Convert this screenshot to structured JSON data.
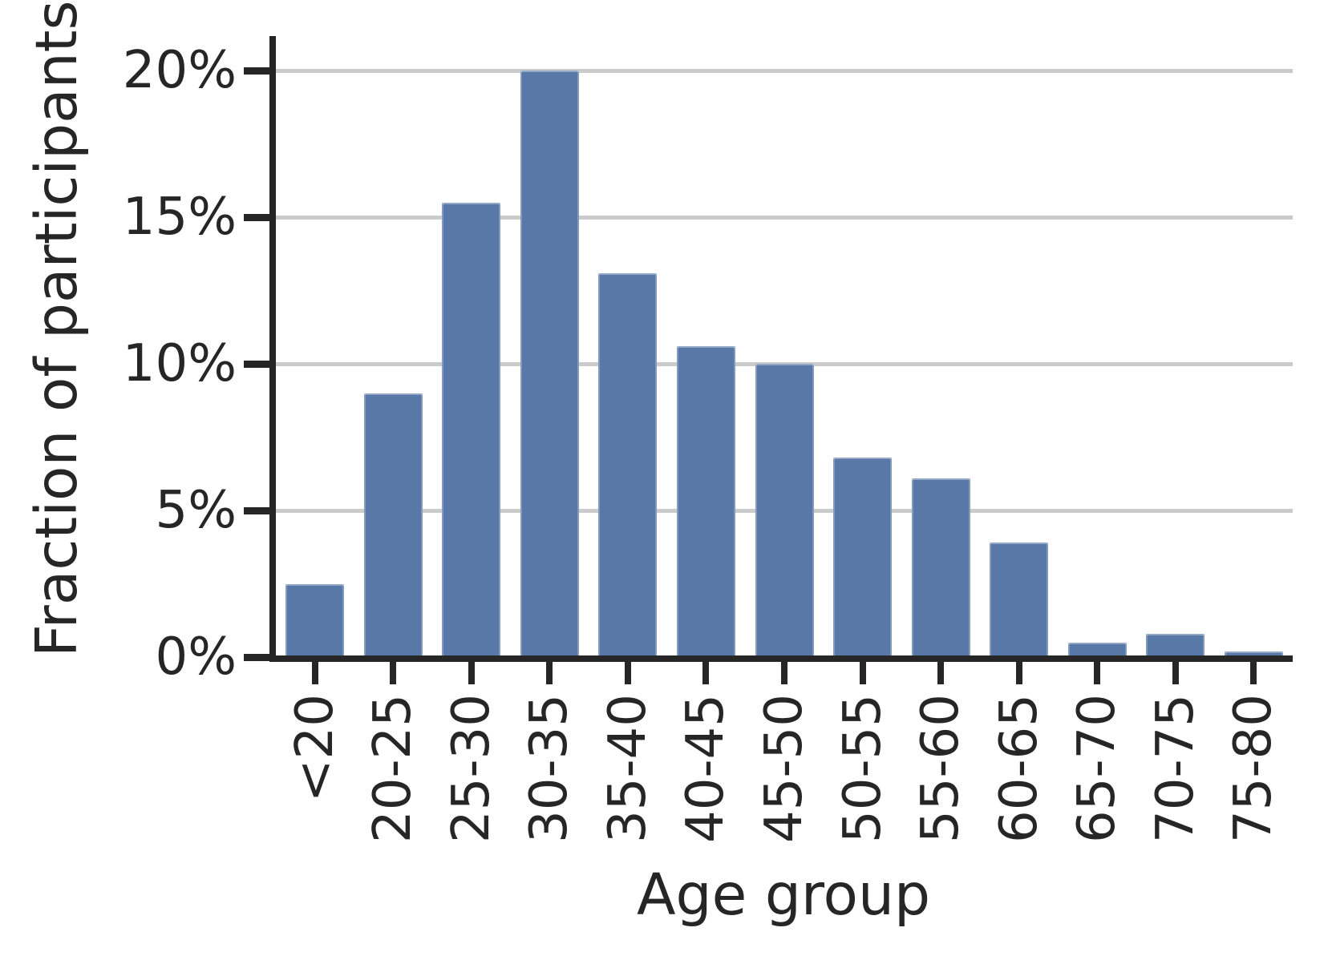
{
  "chart_data": {
    "type": "bar",
    "title": "",
    "xlabel": "Age group",
    "ylabel": "Fraction of participants",
    "categories": [
      "<20",
      "20-25",
      "25-30",
      "30-35",
      "35-40",
      "40-45",
      "45-50",
      "50-55",
      "55-60",
      "60-65",
      "65-70",
      "70-75",
      "75-80"
    ],
    "values": [
      2.5,
      9.0,
      15.5,
      20.0,
      13.1,
      10.6,
      10.0,
      6.8,
      6.1,
      3.9,
      0.5,
      0.8,
      0.2
    ],
    "value_unit": "%",
    "y_ticks": [
      0,
      5,
      10,
      15,
      20
    ],
    "y_tick_labels": [
      "0%",
      "5%",
      "10%",
      "15%",
      "20%"
    ],
    "ylim": [
      0,
      21.2
    ],
    "grid": "horizontal",
    "legend_position": "none",
    "bar_color": "#5878a8",
    "grid_color": "#cbcbcb",
    "axis_color": "#262626",
    "text_color": "#262626",
    "background_color": "#ffffff",
    "bar_width_fraction": 0.75,
    "x_tick_label_rotation_deg": 90
  }
}
